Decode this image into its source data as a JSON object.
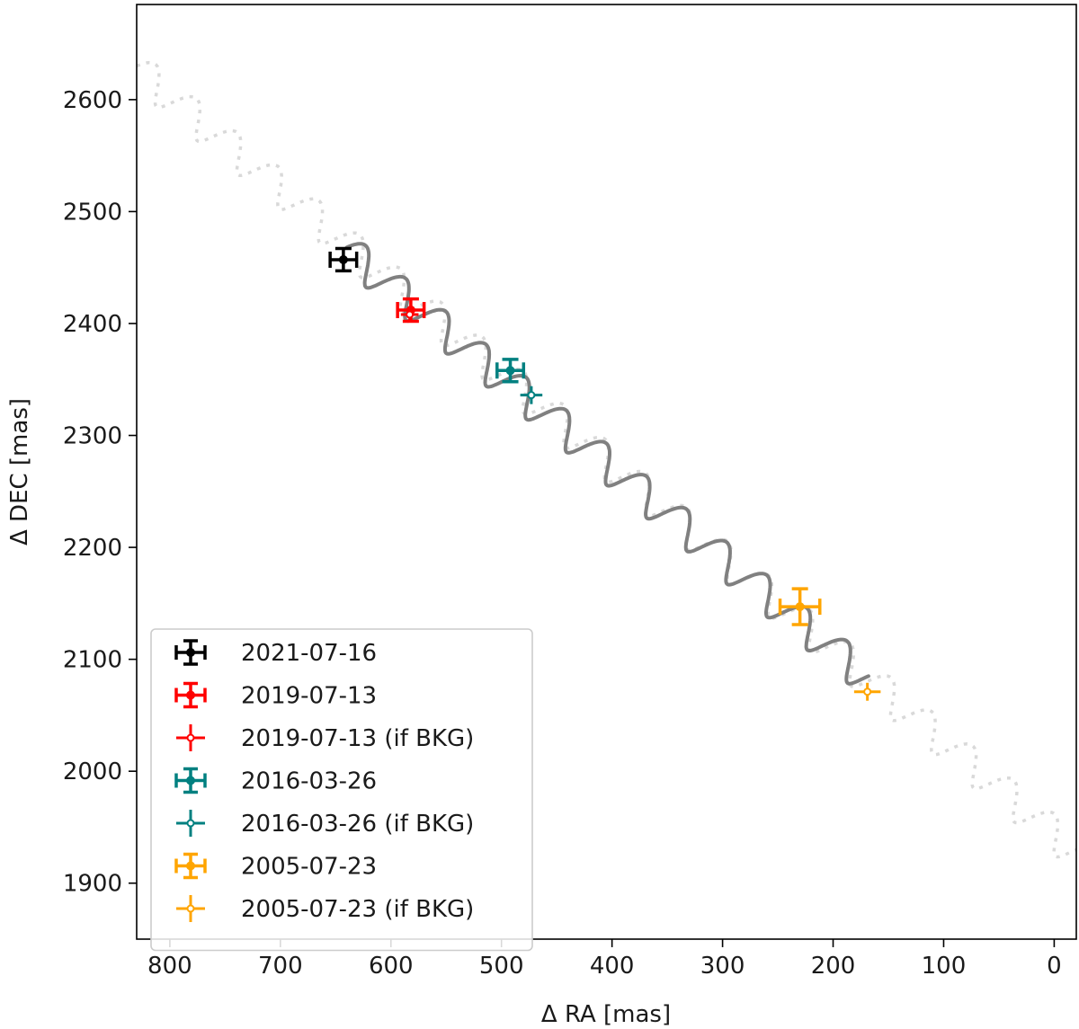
{
  "chart_data": {
    "type": "scatter",
    "xlabel": "Δ RA [mas]",
    "ylabel": "Δ DEC [mas]",
    "xlim": [
      830,
      -20
    ],
    "ylim": [
      1850,
      2685
    ],
    "x_inverted": true,
    "grid": false,
    "legend_position": "lower-left",
    "x_ticks": [
      800,
      700,
      600,
      500,
      400,
      300,
      200,
      100,
      0
    ],
    "y_ticks": [
      1900,
      2000,
      2100,
      2200,
      2300,
      2400,
      2500,
      2600
    ],
    "x_tick_labels": [
      "800",
      "700",
      "600",
      "500",
      "400",
      "300",
      "200",
      "100",
      "0"
    ],
    "y_tick_labels": [
      "1900",
      "2000",
      "2100",
      "2200",
      "2300",
      "2400",
      "2500",
      "2600"
    ],
    "background_track": {
      "color": "#d9d9d9",
      "style": "dotted",
      "x_start": 830,
      "y_start": 2627,
      "x_end": -20,
      "y_end": 1927,
      "loops": 23
    },
    "model_track": {
      "color": "#808080",
      "style": "solid",
      "x_start": 640,
      "y_start": 2465,
      "x_end": 168,
      "y_end": 2082,
      "loops": 13
    },
    "series": [
      {
        "name": "2021-07-16",
        "color": "#000000",
        "marker": "filled",
        "points": [
          {
            "x": 643,
            "y": 2457,
            "xerr": 12,
            "yerr": 10
          }
        ]
      },
      {
        "name": "2019-07-13",
        "color": "#ff0000",
        "marker": "filled",
        "points": [
          {
            "x": 582,
            "y": 2412,
            "xerr": 12,
            "yerr": 10
          }
        ]
      },
      {
        "name": "2019-07-13 (if BKG)",
        "color": "#ff0000",
        "marker": "open",
        "points": [
          {
            "x": 583,
            "y": 2408,
            "xerr": 8,
            "yerr": 7
          }
        ]
      },
      {
        "name": "2016-03-26",
        "color": "#008080",
        "marker": "filled",
        "points": [
          {
            "x": 492,
            "y": 2358,
            "xerr": 12,
            "yerr": 10
          }
        ]
      },
      {
        "name": "2016-03-26 (if BKG)",
        "color": "#008080",
        "marker": "open",
        "points": [
          {
            "x": 473,
            "y": 2336,
            "xerr": 10,
            "yerr": 8
          }
        ]
      },
      {
        "name": "2005-07-23",
        "color": "#ffa500",
        "marker": "filled",
        "points": [
          {
            "x": 230,
            "y": 2147,
            "xerr": 18,
            "yerr": 16
          }
        ]
      },
      {
        "name": "2005-07-23 (if BKG)",
        "color": "#ffa500",
        "marker": "open",
        "points": [
          {
            "x": 169,
            "y": 2071,
            "xerr": 12,
            "yerr": 8
          }
        ]
      }
    ]
  }
}
